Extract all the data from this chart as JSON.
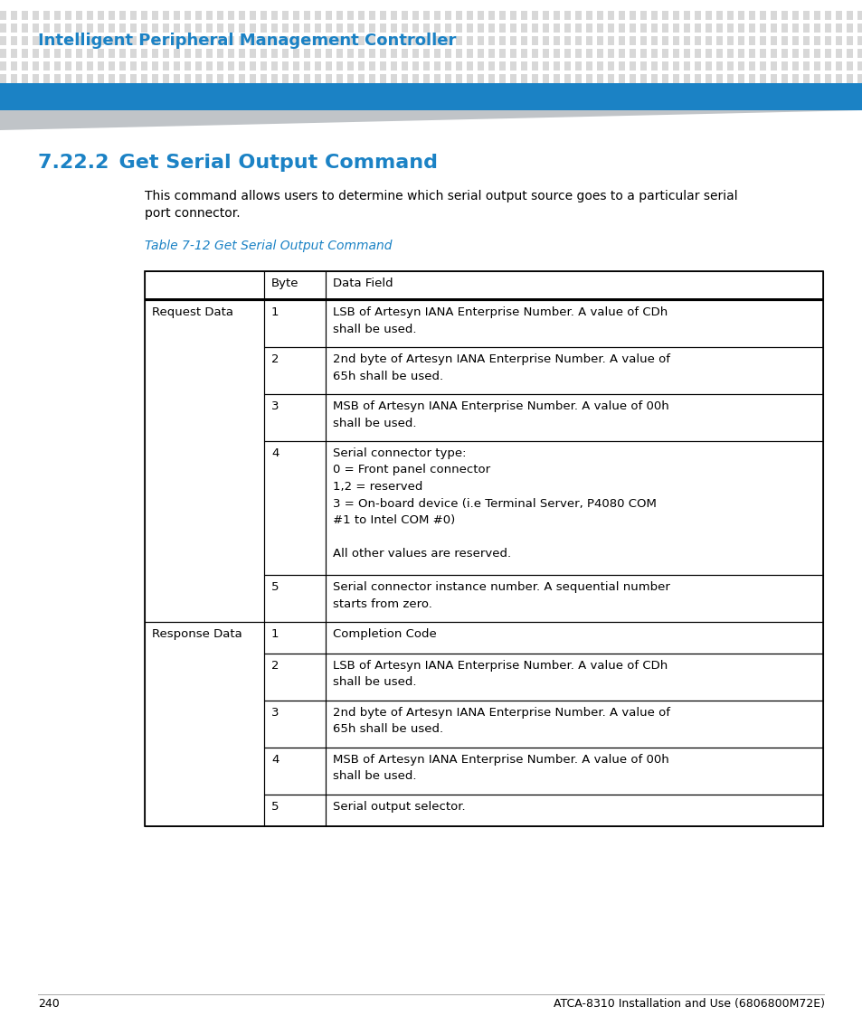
{
  "page_title": "Intelligent Peripheral Management Controller",
  "section_number": "7.22.2",
  "section_title": "Get Serial Output Command",
  "desc_line1": "This command allows users to determine which serial output source goes to a particular serial",
  "desc_line2": "port connector.",
  "table_caption": "Table 7-12 Get Serial Output Command",
  "header_col2": "Byte",
  "header_col3": "Data Field",
  "rows": [
    {
      "col1": "Request Data",
      "col2": "1",
      "col3": "LSB of Artesyn IANA Enterprise Number. A value of CDh\nshall be used."
    },
    {
      "col1": "",
      "col2": "2",
      "col3": "2nd byte of Artesyn IANA Enterprise Number. A value of\n65h shall be used."
    },
    {
      "col1": "",
      "col2": "3",
      "col3": "MSB of Artesyn IANA Enterprise Number. A value of 00h\nshall be used."
    },
    {
      "col1": "",
      "col2": "4",
      "col3": "Serial connector type:\n0 = Front panel connector\n1,2 = reserved\n3 = On-board device (i.e Terminal Server, P4080 COM\n#1 to Intel COM #0)\n\nAll other values are reserved."
    },
    {
      "col1": "",
      "col2": "5",
      "col3": "Serial connector instance number. A sequential number\nstarts from zero."
    },
    {
      "col1": "Response Data",
      "col2": "1",
      "col3": "Completion Code"
    },
    {
      "col1": "",
      "col2": "2",
      "col3": "LSB of Artesyn IANA Enterprise Number. A value of CDh\nshall be used."
    },
    {
      "col1": "",
      "col2": "3",
      "col3": "2nd byte of Artesyn IANA Enterprise Number. A value of\n65h shall be used."
    },
    {
      "col1": "",
      "col2": "4",
      "col3": "MSB of Artesyn IANA Enterprise Number. A value of 00h\nshall be used."
    },
    {
      "col1": "",
      "col2": "5",
      "col3": "Serial output selector."
    }
  ],
  "blue_bar_color": "#1b82c5",
  "dot_color": "#d8d8d8",
  "page_bg": "#ffffff",
  "title_color": "#1b82c5",
  "section_title_color": "#1b82c5",
  "table_caption_color": "#1b82c5",
  "body_text_color": "#000000",
  "footer_text": "240",
  "footer_right_text": "ATCA-8310 Installation and Use (6806800M72E)"
}
